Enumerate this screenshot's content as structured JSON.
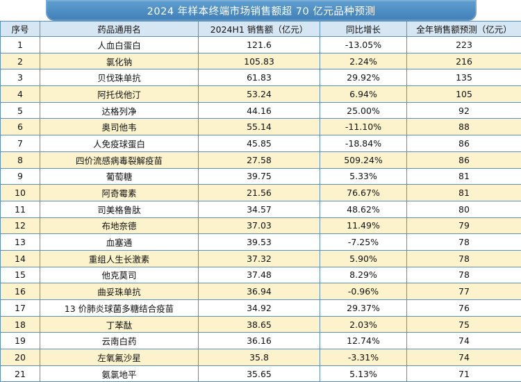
{
  "title": "2024 年样本终端市场销售额超 70 亿元品种预测",
  "headers": [
    "序号",
    "药品通用名",
    "2024H1 销售额（亿元）",
    "同比增长",
    "全年销售额预测（亿元）"
  ],
  "rows": [
    [
      "1",
      "人血白蛋白",
      "121.6",
      "-13.05%",
      "223"
    ],
    [
      "2",
      "氯化钠",
      "105.83",
      "2.24%",
      "216"
    ],
    [
      "3",
      "贝伐珠单抗",
      "61.83",
      "29.92%",
      "135"
    ],
    [
      "4",
      "阿托伐他汀",
      "53.24",
      "6.94%",
      "105"
    ],
    [
      "5",
      "达格列净",
      "44.16",
      "25.00%",
      "92"
    ],
    [
      "6",
      "奥司他韦",
      "55.14",
      "-11.10%",
      "88"
    ],
    [
      "7",
      "人免疫球蛋白",
      "45.85",
      "-18.84%",
      "86"
    ],
    [
      "8",
      "四价流感病毒裂解疫苗",
      "27.58",
      "509.24%",
      "86"
    ],
    [
      "9",
      "葡萄糖",
      "39.75",
      "5.33%",
      "81"
    ],
    [
      "10",
      "阿奇霉素",
      "21.56",
      "76.67%",
      "81"
    ],
    [
      "11",
      "司美格鲁肽",
      "34.57",
      "48.62%",
      "80"
    ],
    [
      "12",
      "布地奈德",
      "37.03",
      "11.49%",
      "79"
    ],
    [
      "13",
      "血塞通",
      "39.53",
      "-7.25%",
      "78"
    ],
    [
      "14",
      "重组人生长激素",
      "37.32",
      "5.90%",
      "78"
    ],
    [
      "15",
      "他克莫司",
      "37.48",
      "8.29%",
      "78"
    ],
    [
      "16",
      "曲妥珠单抗",
      "36.94",
      "-0.96%",
      "77"
    ],
    [
      "17",
      "13 价肺炎球菌多糖结合疫苗",
      "34.92",
      "29.37%",
      "76"
    ],
    [
      "18",
      "丁苯酞",
      "38.65",
      "2.03%",
      "75"
    ],
    [
      "19",
      "云南白药",
      "36.16",
      "12.74%",
      "74"
    ],
    [
      "20",
      "左氧氟沙星",
      "35.8",
      "-3.31%",
      "74"
    ],
    [
      "21",
      "氨氯地平",
      "35.65",
      "5.13%",
      "71"
    ]
  ]
}
